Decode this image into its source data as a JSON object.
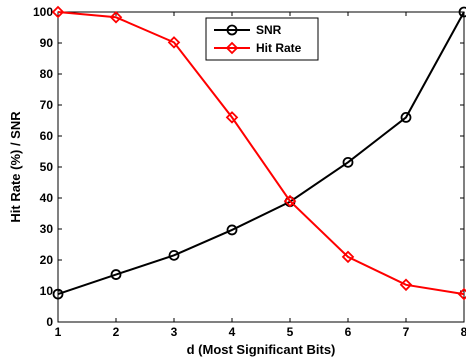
{
  "chart_data": {
    "type": "line",
    "xlabel": "d (Most Significant Bits)",
    "ylabel": "Hit Rate (%) / SNR",
    "x": [
      1,
      2,
      3,
      4,
      5,
      6,
      7,
      8
    ],
    "xlim": [
      1,
      8
    ],
    "ylim": [
      0,
      100
    ],
    "xticks": [
      "1",
      "2",
      "3",
      "4",
      "5",
      "6",
      "7",
      "8"
    ],
    "yticks": [
      "0",
      "10",
      "20",
      "30",
      "40",
      "50",
      "60",
      "70",
      "80",
      "90",
      "100"
    ],
    "grid": false,
    "legend_position": "top-center",
    "series": [
      {
        "name": "SNR",
        "color": "#000000",
        "marker": "circle",
        "values": [
          9,
          15.3,
          21.5,
          29.7,
          38.8,
          51.5,
          66,
          100
        ]
      },
      {
        "name": "Hit Rate",
        "color": "#ff0000",
        "marker": "diamond",
        "values": [
          100,
          98.3,
          90.2,
          66,
          39,
          21,
          12,
          9
        ]
      }
    ]
  }
}
